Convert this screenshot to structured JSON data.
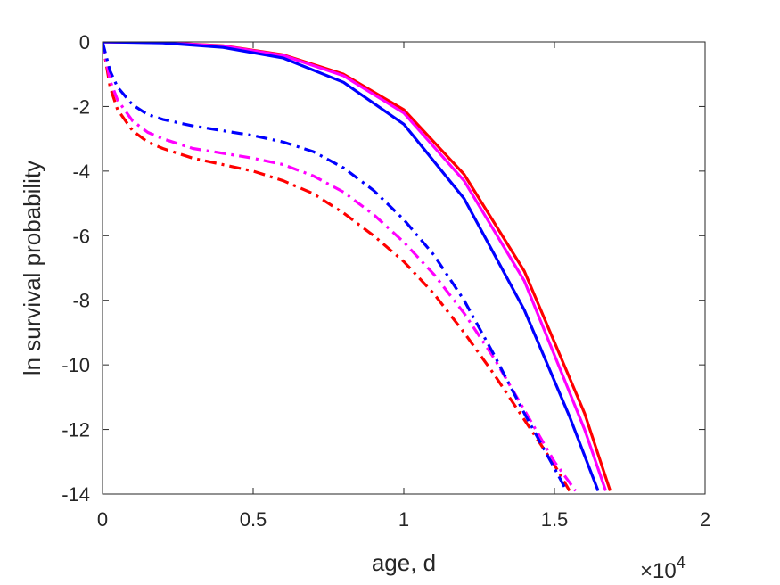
{
  "chart_data": {
    "type": "line",
    "xlabel": "age, d",
    "ylabel": "ln survival probability",
    "x_multiplier": {
      "base": "×10",
      "exponent": "4"
    },
    "xlim": [
      0,
      20000
    ],
    "ylim": [
      -14,
      0
    ],
    "x_ticks": [
      0,
      5000,
      10000,
      15000,
      20000
    ],
    "x_tick_labels": [
      "0",
      "0.5",
      "1",
      "1.5",
      "2"
    ],
    "y_ticks": [
      0,
      -2,
      -4,
      -6,
      -8,
      -10,
      -12,
      -14
    ],
    "y_tick_labels": [
      "0",
      "-2",
      "-4",
      "-6",
      "-8",
      "-10",
      "-12",
      "-14"
    ],
    "grid": false,
    "box": true,
    "series": [
      {
        "color": "#ff0000",
        "style": "solid",
        "x": [
          0,
          2000,
          4000,
          6000,
          8000,
          10000,
          12000,
          14000,
          16000,
          16850
        ],
        "y": [
          0,
          -0.02,
          -0.12,
          -0.4,
          -1.0,
          -2.1,
          -4.1,
          -7.1,
          -11.5,
          -13.9
        ]
      },
      {
        "color": "#ff00ff",
        "style": "solid",
        "x": [
          0,
          2000,
          4000,
          6000,
          8000,
          10000,
          12000,
          14000,
          16000,
          16700
        ],
        "y": [
          0,
          -0.02,
          -0.13,
          -0.42,
          -1.05,
          -2.2,
          -4.3,
          -7.4,
          -12.0,
          -13.9
        ]
      },
      {
        "color": "#0000ff",
        "style": "solid",
        "x": [
          0,
          2000,
          4000,
          6000,
          8000,
          10000,
          12000,
          14000,
          15500,
          16450
        ],
        "y": [
          0,
          -0.03,
          -0.17,
          -0.5,
          -1.25,
          -2.55,
          -4.85,
          -8.3,
          -11.6,
          -13.9
        ]
      },
      {
        "color": "#ff0000",
        "style": "dashdot",
        "x": [
          0,
          250,
          500,
          1000,
          1500,
          2000,
          3000,
          4000,
          5000,
          6000,
          7000,
          8000,
          9000,
          10000,
          11000,
          12000,
          13000,
          14000,
          15000,
          15500
        ],
        "y": [
          0,
          -1.4,
          -2.1,
          -2.75,
          -3.1,
          -3.3,
          -3.6,
          -3.8,
          -4.0,
          -4.3,
          -4.7,
          -5.3,
          -6.0,
          -6.8,
          -7.8,
          -9.0,
          -10.3,
          -11.7,
          -13.1,
          -13.9
        ]
      },
      {
        "color": "#ff00ff",
        "style": "dashdot",
        "x": [
          0,
          250,
          500,
          1000,
          1500,
          2000,
          3000,
          4000,
          5000,
          6000,
          7000,
          8000,
          9000,
          10000,
          11000,
          12000,
          13000,
          14000,
          15000,
          15700
        ],
        "y": [
          0,
          -1.2,
          -1.8,
          -2.45,
          -2.8,
          -3.0,
          -3.3,
          -3.45,
          -3.6,
          -3.8,
          -4.15,
          -4.65,
          -5.35,
          -6.2,
          -7.2,
          -8.4,
          -9.8,
          -11.4,
          -13.0,
          -13.9
        ]
      },
      {
        "color": "#0000ff",
        "style": "dashdot",
        "x": [
          0,
          250,
          500,
          1000,
          1500,
          2000,
          3000,
          4000,
          5000,
          6000,
          7000,
          8000,
          9000,
          10000,
          11000,
          12000,
          13000,
          14000,
          15000,
          15400
        ],
        "y": [
          0,
          -0.9,
          -1.4,
          -1.95,
          -2.25,
          -2.4,
          -2.6,
          -2.75,
          -2.9,
          -3.1,
          -3.4,
          -3.9,
          -4.6,
          -5.5,
          -6.6,
          -8.0,
          -9.7,
          -11.5,
          -13.2,
          -13.9
        ]
      }
    ]
  }
}
